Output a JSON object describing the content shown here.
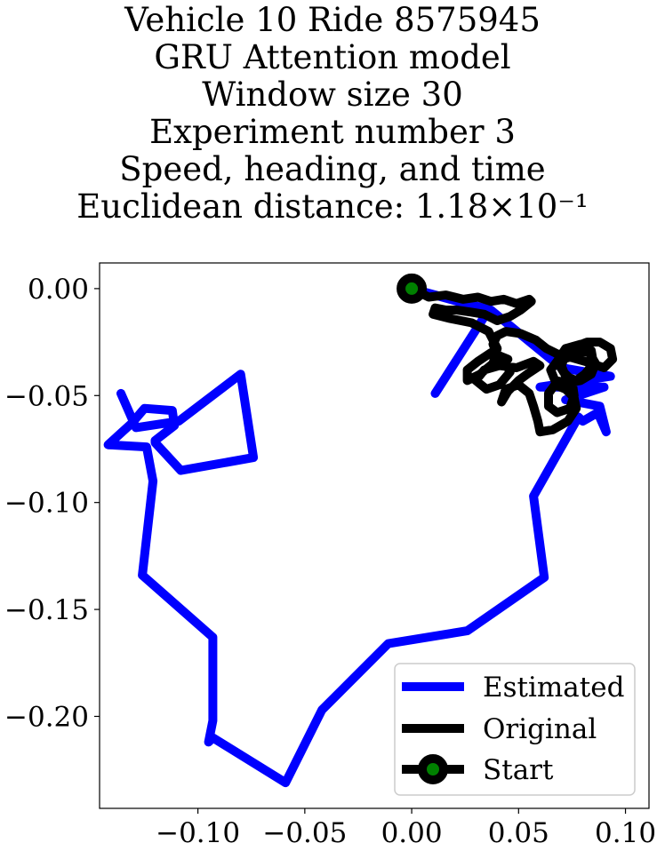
{
  "chart_data": {
    "type": "line",
    "title_lines": [
      "Vehicle 10 Ride 8575945",
      "GRU Attention model",
      "Window size 30",
      "Experiment number 3",
      "Speed, heading, and time",
      "Euclidean distance: 1.18×10⁻¹"
    ],
    "xlim": [
      -0.146,
      0.111
    ],
    "ylim": [
      -0.243,
      0.012
    ],
    "xticks": [
      {
        "value": -0.1,
        "label": "−0.10"
      },
      {
        "value": -0.05,
        "label": "−0.05"
      },
      {
        "value": 0.0,
        "label": "0.00"
      },
      {
        "value": 0.05,
        "label": "0.05"
      },
      {
        "value": 0.1,
        "label": "0.10"
      }
    ],
    "yticks": [
      {
        "value": 0.0,
        "label": "0.00"
      },
      {
        "value": -0.05,
        "label": "−0.05"
      },
      {
        "value": -0.1,
        "label": "−0.10"
      },
      {
        "value": -0.15,
        "label": "−0.15"
      },
      {
        "value": -0.2,
        "label": "−0.20"
      }
    ],
    "grid": false,
    "legend_position": "lower-right",
    "series": [
      {
        "name": "Estimated",
        "color": "#0000ff",
        "points": [
          [
            0.011,
            -0.049
          ],
          [
            0.036,
            -0.01
          ],
          [
            0.0,
            0.0
          ],
          [
            0.037,
            -0.01
          ],
          [
            0.07,
            -0.037
          ],
          [
            0.093,
            -0.041
          ],
          [
            0.06,
            -0.046
          ],
          [
            0.09,
            -0.046
          ],
          [
            0.072,
            -0.052
          ],
          [
            0.088,
            -0.055
          ],
          [
            0.091,
            -0.067
          ],
          [
            0.087,
            -0.058
          ],
          [
            0.08,
            -0.062
          ],
          [
            0.078,
            -0.06
          ],
          [
            0.057,
            -0.097
          ],
          [
            0.062,
            -0.135
          ],
          [
            0.026,
            -0.16
          ],
          [
            -0.011,
            -0.166
          ],
          [
            -0.042,
            -0.197
          ],
          [
            -0.059,
            -0.231
          ],
          [
            -0.093,
            -0.21
          ],
          [
            -0.095,
            -0.212
          ],
          [
            -0.093,
            -0.202
          ],
          [
            -0.093,
            -0.163
          ],
          [
            -0.126,
            -0.134
          ],
          [
            -0.121,
            -0.09
          ],
          [
            -0.124,
            -0.074
          ],
          [
            -0.142,
            -0.073
          ],
          [
            -0.131,
            -0.063
          ],
          [
            -0.125,
            -0.056
          ],
          [
            -0.112,
            -0.057
          ],
          [
            -0.111,
            -0.064
          ],
          [
            -0.12,
            -0.071
          ],
          [
            -0.12,
            -0.072
          ],
          [
            -0.108,
            -0.085
          ],
          [
            -0.074,
            -0.079
          ],
          [
            -0.08,
            -0.04
          ],
          [
            -0.109,
            -0.062
          ],
          [
            -0.129,
            -0.065
          ],
          [
            -0.136,
            -0.049
          ]
        ]
      },
      {
        "name": "Original",
        "color": "#000000",
        "points": [
          [
            0.0,
            0.0
          ],
          [
            0.008,
            -0.004
          ],
          [
            0.016,
            -0.003
          ],
          [
            0.024,
            -0.005
          ],
          [
            0.031,
            -0.004
          ],
          [
            0.037,
            -0.006
          ],
          [
            0.043,
            -0.005
          ],
          [
            0.049,
            -0.007
          ],
          [
            0.055,
            -0.005
          ],
          [
            0.056,
            -0.006
          ],
          [
            0.051,
            -0.01
          ],
          [
            0.046,
            -0.013
          ],
          [
            0.04,
            -0.015
          ],
          [
            0.034,
            -0.012
          ],
          [
            0.028,
            -0.011
          ],
          [
            0.021,
            -0.01
          ],
          [
            0.016,
            -0.01
          ],
          [
            0.011,
            -0.009
          ],
          [
            0.01,
            -0.012
          ],
          [
            0.018,
            -0.014
          ],
          [
            0.028,
            -0.016
          ],
          [
            0.036,
            -0.02
          ],
          [
            0.04,
            -0.028
          ],
          [
            0.038,
            -0.035
          ],
          [
            0.032,
            -0.04
          ],
          [
            0.026,
            -0.043
          ],
          [
            0.026,
            -0.038
          ],
          [
            0.031,
            -0.034
          ],
          [
            0.037,
            -0.03
          ],
          [
            0.043,
            -0.033
          ],
          [
            0.046,
            -0.039
          ],
          [
            0.041,
            -0.045
          ],
          [
            0.035,
            -0.047
          ],
          [
            0.03,
            -0.043
          ],
          [
            0.034,
            -0.038
          ],
          [
            0.041,
            -0.036
          ],
          [
            0.049,
            -0.037
          ],
          [
            0.057,
            -0.034
          ],
          [
            0.06,
            -0.036
          ],
          [
            0.054,
            -0.04
          ],
          [
            0.05,
            -0.043
          ],
          [
            0.045,
            -0.048
          ],
          [
            0.042,
            -0.053
          ],
          [
            0.044,
            -0.047
          ],
          [
            0.05,
            -0.045
          ],
          [
            0.055,
            -0.049
          ],
          [
            0.057,
            -0.055
          ],
          [
            0.059,
            -0.062
          ],
          [
            0.06,
            -0.067
          ],
          [
            0.066,
            -0.066
          ],
          [
            0.073,
            -0.062
          ],
          [
            0.077,
            -0.056
          ],
          [
            0.076,
            -0.051
          ],
          [
            0.072,
            -0.047
          ],
          [
            0.067,
            -0.045
          ],
          [
            0.064,
            -0.049
          ],
          [
            0.064,
            -0.055
          ],
          [
            0.068,
            -0.058
          ],
          [
            0.074,
            -0.056
          ],
          [
            0.076,
            -0.05
          ],
          [
            0.075,
            -0.043
          ],
          [
            0.071,
            -0.039
          ],
          [
            0.068,
            -0.034
          ],
          [
            0.072,
            -0.028
          ],
          [
            0.079,
            -0.026
          ],
          [
            0.084,
            -0.029
          ],
          [
            0.085,
            -0.035
          ],
          [
            0.081,
            -0.04
          ],
          [
            0.077,
            -0.043
          ],
          [
            0.072,
            -0.041
          ],
          [
            0.07,
            -0.036
          ],
          [
            0.072,
            -0.031
          ],
          [
            0.077,
            -0.029
          ],
          [
            0.083,
            -0.03
          ],
          [
            0.086,
            -0.035
          ],
          [
            0.084,
            -0.04
          ],
          [
            0.079,
            -0.043
          ],
          [
            0.073,
            -0.044
          ],
          [
            0.067,
            -0.043
          ],
          [
            0.065,
            -0.038
          ],
          [
            0.068,
            -0.034
          ],
          [
            0.074,
            -0.032
          ],
          [
            0.081,
            -0.034
          ],
          [
            0.087,
            -0.036
          ],
          [
            0.09,
            -0.037
          ],
          [
            0.094,
            -0.033
          ],
          [
            0.093,
            -0.028
          ],
          [
            0.088,
            -0.025
          ],
          [
            0.082,
            -0.025
          ],
          [
            0.077,
            -0.027
          ],
          [
            0.073,
            -0.03
          ],
          [
            0.069,
            -0.031
          ],
          [
            0.063,
            -0.028
          ],
          [
            0.058,
            -0.024
          ],
          [
            0.051,
            -0.021
          ],
          [
            0.044,
            -0.02
          ],
          [
            0.04,
            -0.022
          ],
          [
            0.038,
            -0.026
          ],
          [
            0.04,
            -0.031
          ],
          [
            0.045,
            -0.033
          ]
        ]
      }
    ],
    "start_point": {
      "name": "Start",
      "x": 0.0,
      "y": 0.0,
      "marker_face": "#008000",
      "marker_edge": "#000000"
    },
    "legend_entries": [
      "Estimated",
      "Original",
      "Start"
    ]
  }
}
